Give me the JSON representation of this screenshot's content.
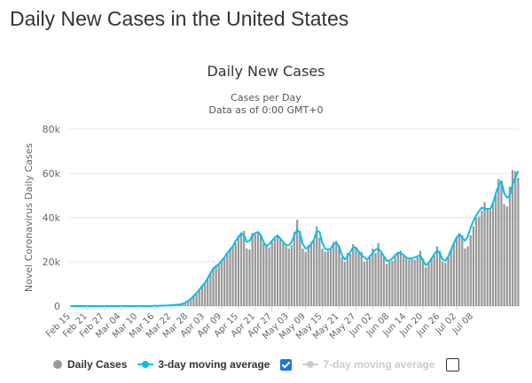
{
  "page": {
    "title": "Daily New Cases in the United States"
  },
  "colors": {
    "bars": "#999999",
    "ma3": "#00c0ef",
    "ma7_disabled": "#cccccc",
    "grid": "#e6e6e6",
    "checkbox": "#1a73e8"
  },
  "legend": {
    "daily_cases": "Daily Cases",
    "ma3": "3-day moving average",
    "ma7": "7-day moving average",
    "ma3_checked": true,
    "ma7_checked": false
  },
  "chart_data": {
    "type": "bar",
    "title": "Daily New Cases",
    "subtitle_line1": "Cases per Day",
    "subtitle_line2": "Data as of 0:00 GMT+0",
    "ylabel": "Novel Coronavirus Daily Cases",
    "xlabel": "",
    "ylim": [
      0,
      80000
    ],
    "y_ticks": [
      0,
      20000,
      40000,
      60000,
      80000
    ],
    "y_tick_labels": [
      "0",
      "20k",
      "40k",
      "60k",
      "80k"
    ],
    "x_tick_labels": [
      "Feb 15",
      "Feb 21",
      "Feb 27",
      "Mar 04",
      "Mar 10",
      "Mar 16",
      "Mar 22",
      "Mar 28",
      "Apr 03",
      "Apr 09",
      "Apr 15",
      "Apr 21",
      "Apr 27",
      "May 03",
      "May 09",
      "May 15",
      "May 21",
      "May 27",
      "Jun 02",
      "Jun 08",
      "Jun 14",
      "Jun 20",
      "Jun 26",
      "Jul 02",
      "Jul 08"
    ],
    "start_date": "Feb 15",
    "series": [
      {
        "name": "Daily Cases",
        "type": "bar",
        "values": [
          0,
          0,
          0,
          0,
          0,
          0,
          0,
          0,
          0,
          0,
          0,
          0,
          0,
          0,
          0,
          0,
          0,
          0,
          0,
          0,
          0,
          0,
          0,
          0,
          0,
          0,
          0,
          0,
          0,
          100,
          50,
          100,
          100,
          200,
          200,
          300,
          400,
          500,
          600,
          700,
          1000,
          1500,
          2500,
          3500,
          4500,
          5500,
          7500,
          9000,
          10500,
          12500,
          14500,
          17000,
          18500,
          19000,
          20500,
          22000,
          24000,
          26000,
          27000,
          28500,
          32000,
          33000,
          34000,
          26000,
          25500,
          33000,
          32500,
          33000,
          31500,
          28500,
          27000,
          26500,
          29000,
          30500,
          32000,
          30500,
          28500,
          27000,
          26000,
          27500,
          33500,
          39000,
          34000,
          26000,
          24500,
          27500,
          29000,
          30000,
          36000,
          31000,
          26000,
          24500,
          25000,
          26000,
          29000,
          29500,
          27500,
          22000,
          20000,
          24000,
          23500,
          28000,
          26500,
          25000,
          24500,
          20000,
          20500,
          22000,
          26000,
          24000,
          28500,
          24000,
          22500,
          19000,
          20000,
          20500,
          22500,
          24500,
          25000,
          22500,
          22000,
          21000,
          21500,
          21000,
          22000,
          25000,
          21500,
          17500,
          19500,
          22000,
          23000,
          27000,
          25000,
          20000,
          19500,
          22500,
          25500,
          28000,
          31500,
          33000,
          32000,
          26000,
          27000,
          32000,
          36000,
          40000,
          40500,
          43000,
          47000,
          44000,
          43500,
          47000,
          51000,
          57500,
          55000,
          46000,
          45000,
          54000,
          61500,
          61000,
          58000
        ]
      },
      {
        "name": "3-day moving average",
        "type": "line",
        "values": [
          0,
          0,
          0,
          0,
          0,
          0,
          0,
          0,
          0,
          0,
          0,
          0,
          0,
          0,
          0,
          0,
          0,
          0,
          0,
          0,
          0,
          0,
          0,
          0,
          0,
          0,
          0,
          0,
          0,
          50,
          80,
          100,
          150,
          200,
          250,
          300,
          400,
          500,
          600,
          700,
          1000,
          1500,
          2300,
          3300,
          4500,
          5800,
          7300,
          9000,
          10500,
          12500,
          14800,
          17000,
          18000,
          19000,
          20500,
          22000,
          24000,
          25500,
          27000,
          29500,
          31000,
          33000,
          32000,
          29000,
          29500,
          32000,
          33000,
          33500,
          32000,
          29000,
          27000,
          28000,
          29500,
          31000,
          32000,
          30500,
          29000,
          27500,
          27500,
          29000,
          32000,
          34500,
          33000,
          28000,
          26000,
          26500,
          28000,
          30000,
          34000,
          33500,
          28500,
          26000,
          25500,
          26000,
          28000,
          28500,
          27000,
          23000,
          21000,
          22500,
          24500,
          26500,
          26500,
          24500,
          23000,
          22000,
          21000,
          22500,
          24000,
          25500,
          26000,
          24500,
          22500,
          20500,
          20500,
          21500,
          23000,
          24000,
          24000,
          23000,
          22000,
          21500,
          21500,
          22000,
          22500,
          23000,
          20500,
          18500,
          19500,
          21500,
          23500,
          25000,
          24000,
          21000,
          20500,
          22500,
          25500,
          28500,
          31000,
          32500,
          31000,
          29500,
          31500,
          35500,
          38500,
          41000,
          43000,
          44500,
          44000,
          44000,
          44000,
          46500,
          51000,
          54500,
          56500,
          51000,
          49000,
          50000,
          55000,
          58000,
          61000
        ]
      },
      {
        "name": "7-day moving average",
        "type": "line",
        "visible": false,
        "values": []
      }
    ]
  }
}
